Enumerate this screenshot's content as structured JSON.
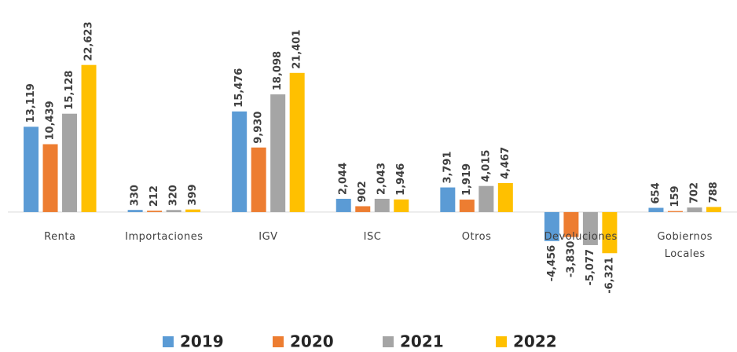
{
  "chart_data": {
    "type": "bar",
    "categories": [
      "Renta",
      "Importaciones",
      "IGV",
      "ISC",
      "Otros",
      "Devoluciones",
      "Gobiernos Locales"
    ],
    "series": [
      {
        "name": "2019",
        "color": "#5b9bd5",
        "values": [
          13119,
          330,
          15476,
          2044,
          3791,
          -4456,
          654
        ],
        "value_labels": [
          "13,119",
          "330",
          "15,476",
          "2,044",
          "3,791",
          "-4,456",
          "654"
        ]
      },
      {
        "name": "2020",
        "color": "#ed7d31",
        "values": [
          10439,
          212,
          9930,
          902,
          1919,
          -3830,
          159
        ],
        "value_labels": [
          "10,439",
          "212",
          "9,930",
          "902",
          "1,919",
          "-3,830",
          "159"
        ]
      },
      {
        "name": "2021",
        "color": "#a5a5a5",
        "values": [
          15128,
          320,
          18098,
          2043,
          4015,
          -5077,
          702
        ],
        "value_labels": [
          "15,128",
          "320",
          "18,098",
          "2,043",
          "4,015",
          "-5,077",
          "702"
        ]
      },
      {
        "name": "2022",
        "color": "#ffc000",
        "values": [
          22623,
          399,
          21401,
          1946,
          4467,
          -6321,
          788
        ],
        "value_labels": [
          "22,623",
          "399",
          "21,401",
          "1,946",
          "4,467",
          "-6,321",
          "788"
        ]
      }
    ],
    "ylim": [
      -10000,
      25000
    ],
    "legend": "bottom"
  }
}
